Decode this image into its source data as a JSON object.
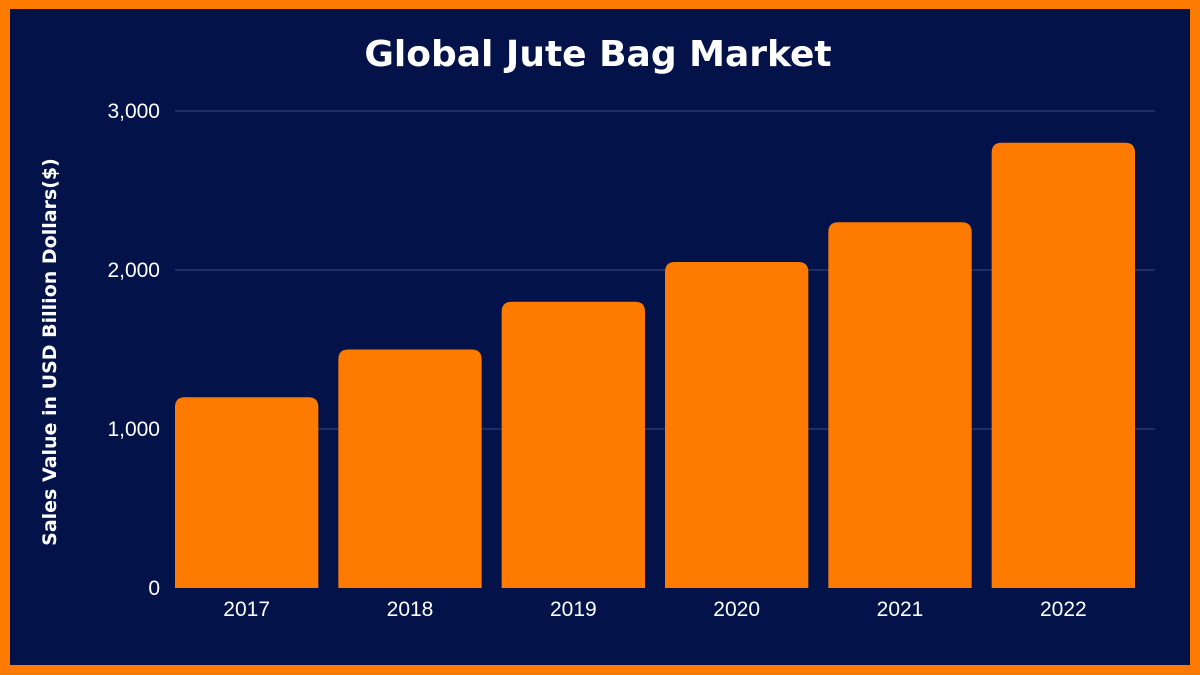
{
  "chart_data": {
    "type": "bar",
    "title": "Global Jute Bag Market",
    "xlabel": "",
    "ylabel": "Sales Value in USD Billion Dollars($)",
    "categories": [
      "2017",
      "2018",
      "2019",
      "2020",
      "2021",
      "2022"
    ],
    "values": [
      1200,
      1500,
      1800,
      2050,
      2300,
      2800
    ],
    "ylim": [
      0,
      3000
    ],
    "yticks": [
      0,
      1000,
      2000,
      3000
    ],
    "ytick_labels": [
      "0",
      "1,000",
      "2,000",
      "3,000"
    ],
    "grid": true,
    "legend": "none"
  },
  "colors": {
    "background": "#03134a",
    "border": "#ff7b00",
    "bar": "#ff7b00",
    "grid": "#3a4a7a",
    "text": "#ffffff"
  }
}
